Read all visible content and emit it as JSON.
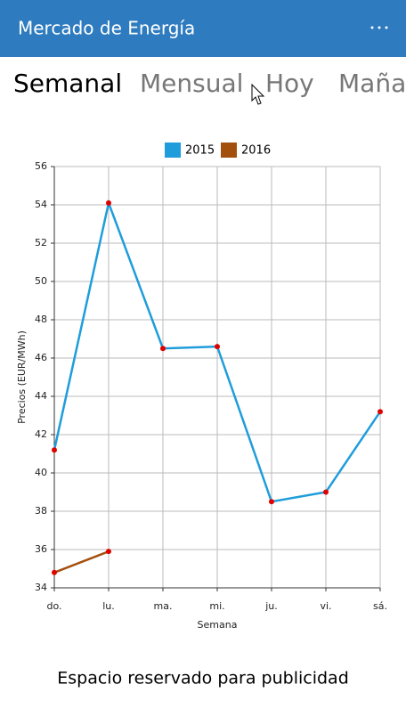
{
  "app_bar": {
    "title": "Mercado de Energía"
  },
  "tabs": [
    "Semanal",
    "Mensual",
    "Hoy",
    "Maña"
  ],
  "chart_data": {
    "type": "line",
    "categories": [
      "do.",
      "lu.",
      "ma.",
      "mi.",
      "ju.",
      "vi.",
      "sá."
    ],
    "series": [
      {
        "name": "2015",
        "color": "#1f9ddb",
        "values": [
          41.2,
          54.1,
          46.5,
          46.6,
          38.5,
          39.0,
          43.2
        ]
      },
      {
        "name": "2016",
        "color": "#a3500f",
        "values": [
          34.8,
          35.9,
          null,
          null,
          null,
          null,
          null
        ]
      }
    ],
    "marker_color": "#e00000",
    "x_label": "Semana",
    "y_label": "Precios (EUR/MWh)",
    "ylim": [
      34,
      56
    ],
    "yticks": [
      34,
      36,
      38,
      40,
      42,
      44,
      46,
      48,
      50,
      52,
      54,
      56
    ],
    "grid": true,
    "legend": "top"
  },
  "footer": "Espacio reservado para publicidad"
}
